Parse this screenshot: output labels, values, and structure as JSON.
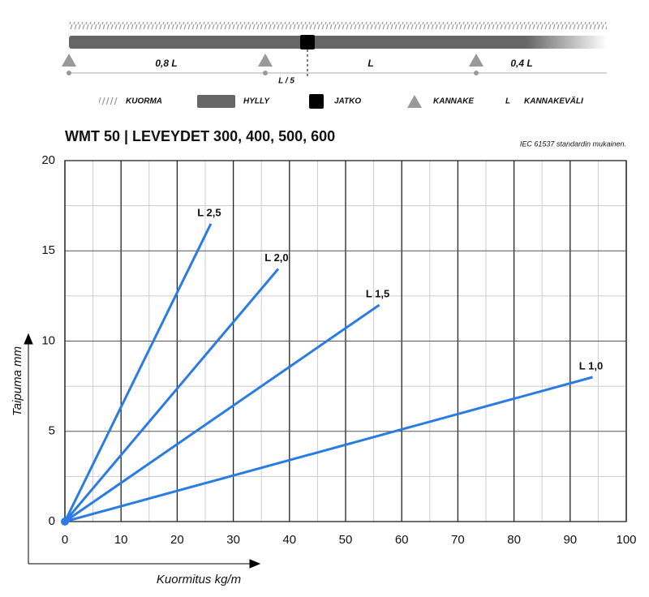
{
  "diagram": {
    "spans": [
      "0,8 L",
      "L",
      "0,4 L"
    ],
    "joint_offset": "L / 5",
    "legend": [
      {
        "label": "KUORMA"
      },
      {
        "label": "HYLLY"
      },
      {
        "label": "JATKO"
      },
      {
        "label": "KANNAKE"
      },
      {
        "key": "L",
        "label": "KANNAKEVÄLI"
      }
    ]
  },
  "chart_data": {
    "type": "line",
    "title": "WMT 50 | LEVEYDET 300, 400, 500, 600",
    "note": "IEC 61537 standardin mukainen.",
    "x_label": "Kuormitus kg/m",
    "y_label": "Taipuma mm",
    "xlim": [
      0,
      100
    ],
    "xticks": [
      0,
      10,
      20,
      30,
      40,
      50,
      60,
      70,
      80,
      90,
      100
    ],
    "ylim": [
      0,
      20
    ],
    "yticks": [
      0,
      5,
      10,
      15,
      20
    ],
    "grid": true,
    "minor_grid": true,
    "color": "#2a7be4",
    "series": [
      {
        "name": "L 2,5",
        "x": [
          0,
          26
        ],
        "values": [
          0,
          16.5
        ]
      },
      {
        "name": "L 2,0",
        "x": [
          0,
          38
        ],
        "values": [
          0,
          14
        ]
      },
      {
        "name": "L 1,5",
        "x": [
          0,
          56
        ],
        "values": [
          0,
          12
        ]
      },
      {
        "name": "L 1,0",
        "x": [
          0,
          94
        ],
        "values": [
          0,
          8
        ]
      }
    ]
  }
}
